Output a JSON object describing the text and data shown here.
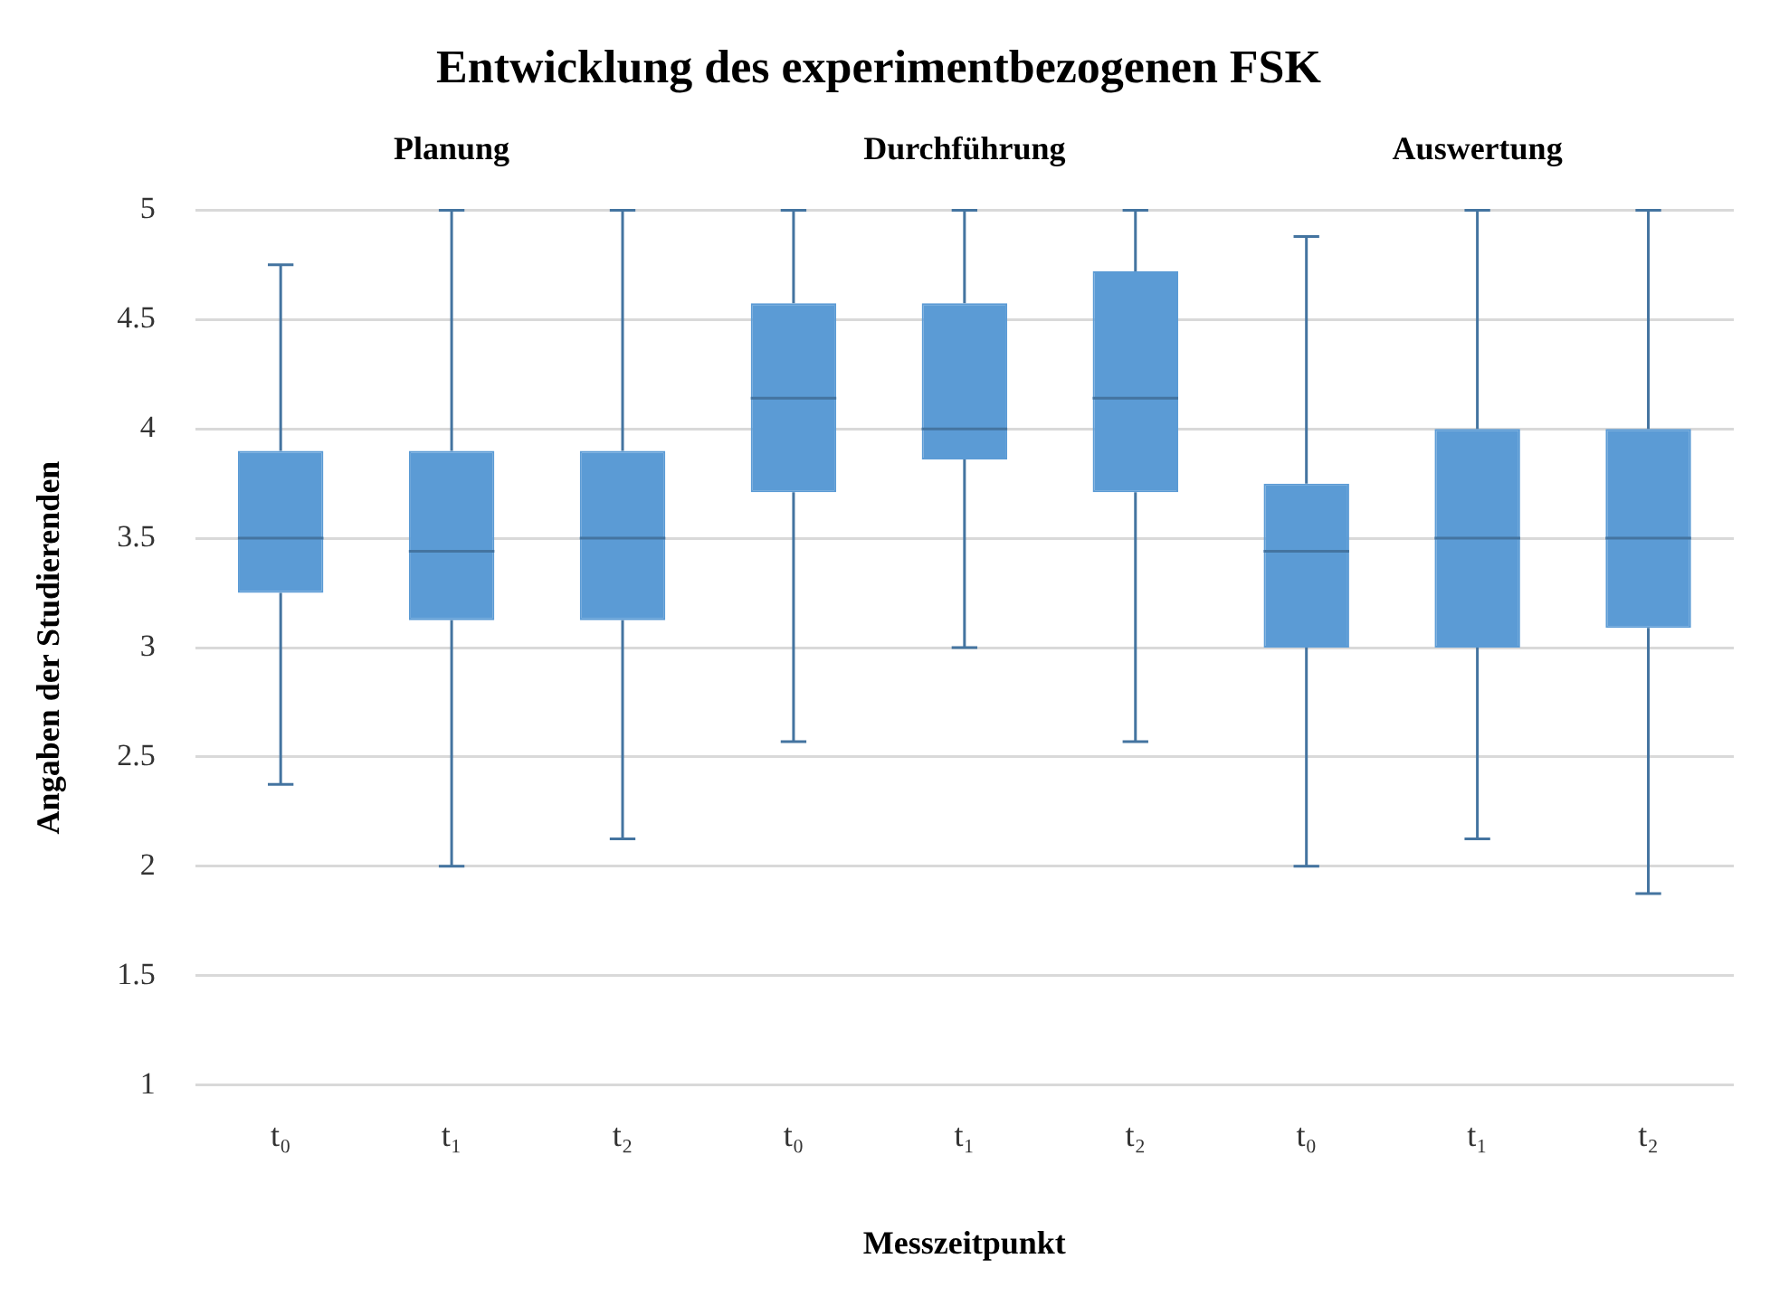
{
  "chart_data": {
    "type": "box",
    "title": "Entwicklung des experimentbezogenen FSK",
    "xlabel": "Messzeitpunkt",
    "ylabel": "Angaben der Studierenden",
    "categories": [
      "t₀",
      "t₁",
      "t₂",
      "t₀",
      "t₁",
      "t₂",
      "t₀",
      "t₁",
      "t₂"
    ],
    "annotations": [
      "Planung",
      "Durchführung",
      "Auswertung"
    ],
    "color": "#5b9bd5",
    "boxes": [
      {
        "low": 2.375,
        "q1": 3.25,
        "median": 3.5,
        "q3": 3.9,
        "high": 4.75
      },
      {
        "low": 2,
        "q1": 3.125,
        "median": 3.44,
        "q3": 3.9,
        "high": 5
      },
      {
        "low": 2.125,
        "q1": 3.125,
        "median": 3.5,
        "q3": 3.9,
        "high": 5
      },
      {
        "low": 2.57,
        "q1": 3.71,
        "median": 4.14,
        "q3": 4.575,
        "high": 5
      },
      {
        "low": 3,
        "q1": 3.86,
        "median": 4,
        "q3": 4.575,
        "high": 5
      },
      {
        "low": 2.57,
        "q1": 3.71,
        "median": 4.14,
        "q3": 4.72,
        "high": 5
      },
      {
        "low": 2,
        "q1": 3,
        "median": 3.44,
        "q3": 3.75,
        "high": 4.88
      },
      {
        "low": 2.125,
        "q1": 3,
        "median": 3.5,
        "q3": 4,
        "high": 5
      },
      {
        "low": 1.875,
        "q1": 3.09,
        "median": 3.5,
        "q3": 4,
        "high": 5
      }
    ],
    "ylim": [
      1,
      5
    ],
    "yticks": [
      1,
      1.5,
      2,
      2.5,
      3,
      3.5,
      4,
      4.5,
      5
    ],
    "grid": "y",
    "legend": false
  }
}
